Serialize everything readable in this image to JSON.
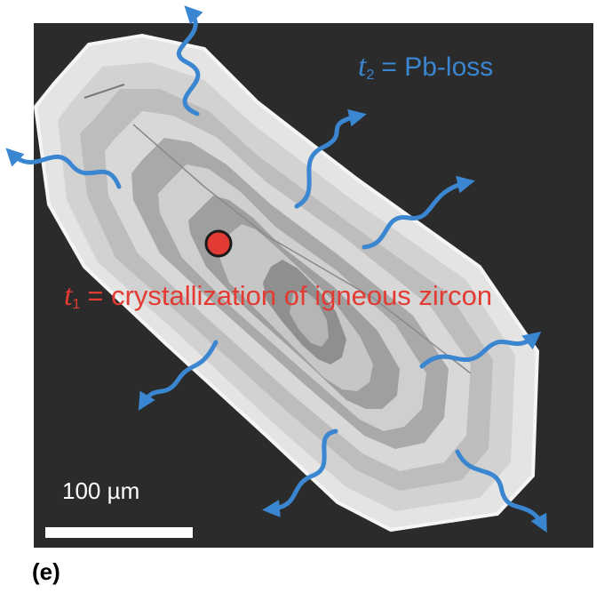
{
  "labels": {
    "t2_var": "t",
    "t2_sub": "2",
    "t2_text": "= Pb-loss",
    "t1_var": "t",
    "t1_sub": "1",
    "t1_text": "= crystallization of igneous zircon",
    "scale": "100 µm",
    "panel": "(e)"
  },
  "colors": {
    "background": "#2b2b2b",
    "zircon": "#c9c9c9",
    "arrow_blue": "#3a86d0",
    "label_red": "#e23b33",
    "core_dot": "#e23b33"
  },
  "icons": [
    "pb-loss-arrow-icon",
    "crystallization-point-icon"
  ]
}
